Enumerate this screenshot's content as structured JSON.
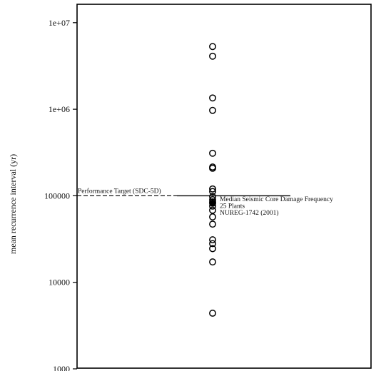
{
  "chart_data": {
    "type": "scatter",
    "title": "",
    "xlabel": "",
    "ylabel": "mean recurrence interval (yr)",
    "y_scale": "log",
    "ylim": [
      1000,
      20000000
    ],
    "y_ticks": [
      {
        "value": 1000,
        "label": "1000"
      },
      {
        "value": 10000,
        "label": "10000"
      },
      {
        "value": 100000,
        "label": "100000"
      },
      {
        "value": 1000000,
        "label": "1e+06"
      },
      {
        "value": 10000000,
        "label": "1e+07"
      }
    ],
    "grid": false,
    "series": [
      {
        "marker": "open-circle",
        "values": [
          5300000,
          4100000,
          1350000,
          970000,
          310000,
          215000,
          208000,
          120000,
          112000,
          98000,
          90000,
          85000,
          82000,
          76000,
          68000,
          57000,
          47000,
          31000,
          28000,
          24500,
          17200,
          4400
        ]
      }
    ],
    "reference_lines": [
      {
        "value": 100000,
        "label": "Performance Target (SDC-5D)",
        "style": "dashed",
        "extent": "left"
      },
      {
        "value": 100000,
        "label": "",
        "style": "solid",
        "extent": "middle"
      }
    ],
    "median_marker": {
      "value": 82000,
      "label_lines": [
        "Median Seismic Core Damage Frequency",
        "25 Plants",
        "NUREG-1742 (2001)"
      ]
    }
  }
}
